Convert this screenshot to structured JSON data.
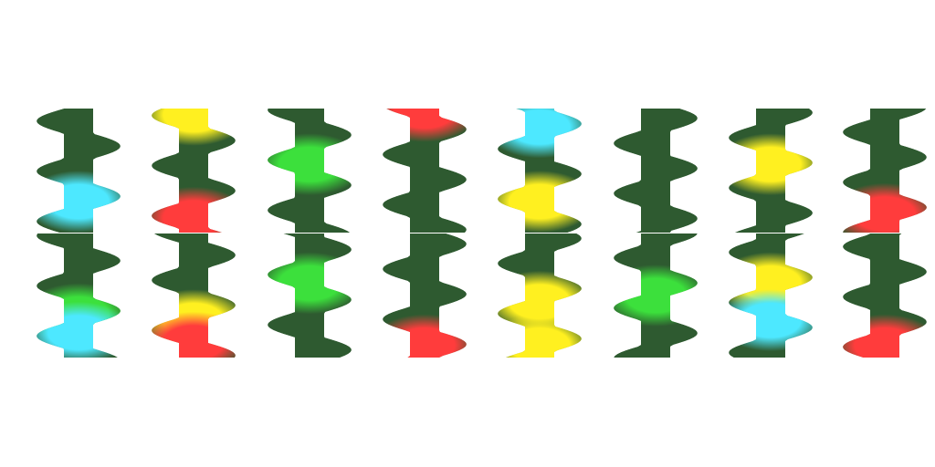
{
  "colors": {
    "base": "#2e5a30",
    "cyan": "#4de8ff",
    "red": "#ff3c3c",
    "green": "#3ce03c",
    "yellow": "#fff020"
  },
  "tiles": [
    {
      "top": [
        [
          "cyan",
          0.75
        ]
      ],
      "bottom": [
        [
          "green",
          0.65
        ],
        [
          "cyan",
          0.8
        ]
      ]
    },
    {
      "top": [
        [
          "yellow",
          0.05
        ],
        [
          "red",
          0.88
        ]
      ],
      "bottom": [
        [
          "yellow",
          0.7
        ],
        [
          "red",
          0.88
        ]
      ]
    },
    {
      "top": [
        [
          "green",
          0.45
        ]
      ],
      "bottom": [
        [
          "green",
          0.4
        ]
      ]
    },
    {
      "top": [
        [
          "red",
          0.02
        ]
      ],
      "bottom": [
        [
          "red",
          0.9
        ]
      ]
    },
    {
      "top": [
        [
          "cyan",
          0.15
        ],
        [
          "yellow",
          0.75
        ]
      ],
      "bottom": [
        [
          "yellow",
          0.55
        ],
        [
          "yellow",
          0.9
        ]
      ]
    },
    {
      "top": [],
      "bottom": [
        [
          "green",
          0.5
        ]
      ]
    },
    {
      "top": [
        [
          "yellow",
          0.45
        ]
      ],
      "bottom": [
        [
          "yellow",
          0.4
        ],
        [
          "cyan",
          0.7
        ]
      ]
    },
    {
      "top": [
        [
          "red",
          0.85
        ]
      ],
      "bottom": [
        [
          "red",
          0.9
        ]
      ]
    }
  ]
}
